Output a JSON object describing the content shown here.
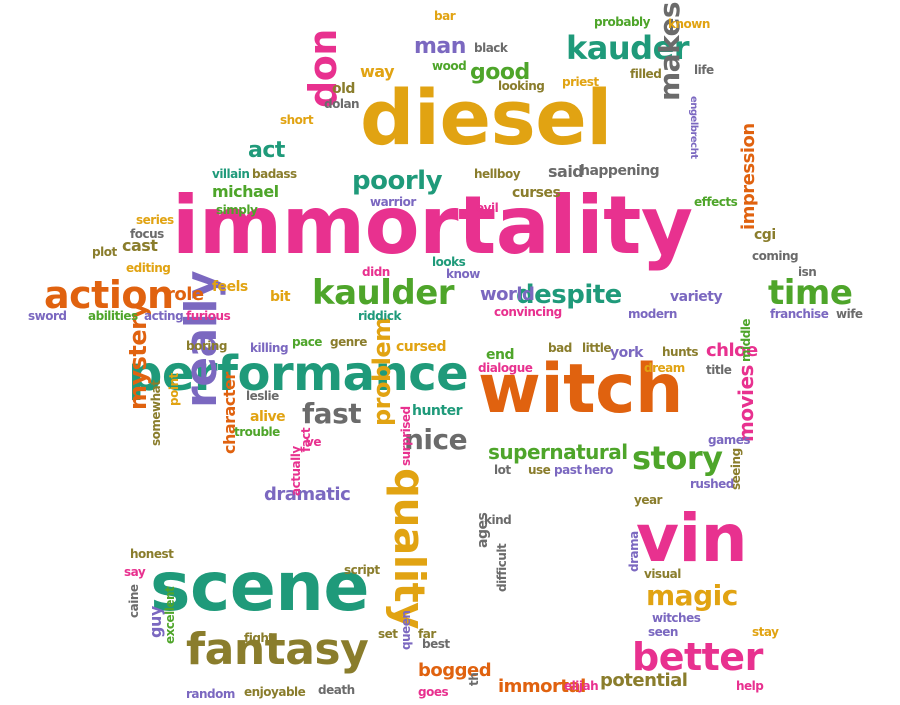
{
  "palette": {
    "pink": "#e8318f",
    "gold": "#e1a312",
    "teal": "#1f9a7a",
    "purple": "#7b68c0",
    "orange": "#e0620f",
    "olive": "#8a7d2c",
    "green": "#4ea52a",
    "gray": "#6b6b6b",
    "dark": "#555555"
  },
  "words": [
    {
      "text": "immortality",
      "color": "pink"
    },
    {
      "text": "diesel",
      "color": "gold"
    },
    {
      "text": "witch",
      "color": "orange"
    },
    {
      "text": "scene",
      "color": "teal"
    },
    {
      "text": "performance",
      "color": "teal"
    },
    {
      "text": "vin",
      "color": "pink"
    },
    {
      "text": "kaulder",
      "color": "green"
    },
    {
      "text": "kauder",
      "color": "teal"
    },
    {
      "text": "fantasy",
      "color": "olive"
    },
    {
      "text": "really",
      "color": "purple"
    },
    {
      "text": "quality",
      "color": "gold"
    },
    {
      "text": "don",
      "color": "pink"
    },
    {
      "text": "action",
      "color": "orange"
    },
    {
      "text": "time",
      "color": "green"
    },
    {
      "text": "better",
      "color": "pink"
    },
    {
      "text": "makes",
      "color": "gray"
    },
    {
      "text": "story",
      "color": "green"
    },
    {
      "text": "despite",
      "color": "teal"
    },
    {
      "text": "poorly",
      "color": "teal"
    },
    {
      "text": "magic",
      "color": "gold"
    },
    {
      "text": "nice",
      "color": "gray"
    },
    {
      "text": "problem",
      "color": "gold"
    },
    {
      "text": "mystery",
      "color": "orange"
    },
    {
      "text": "fast",
      "color": "gray"
    },
    {
      "text": "supernatural",
      "color": "green"
    },
    {
      "text": "good",
      "color": "green"
    },
    {
      "text": "man",
      "color": "purple"
    },
    {
      "text": "act",
      "color": "teal"
    },
    {
      "text": "movies",
      "color": "pink"
    },
    {
      "text": "dramatic",
      "color": "purple"
    },
    {
      "text": "immortal",
      "color": "orange"
    },
    {
      "text": "potential",
      "color": "olive"
    },
    {
      "text": "bogged",
      "color": "orange"
    },
    {
      "text": "impression",
      "color": "orange"
    },
    {
      "text": "chloe",
      "color": "pink"
    },
    {
      "text": "michael",
      "color": "green"
    },
    {
      "text": "world",
      "color": "purple"
    },
    {
      "text": "role",
      "color": "orange"
    },
    {
      "text": "cast",
      "color": "olive"
    },
    {
      "text": "way",
      "color": "gold"
    },
    {
      "text": "character",
      "color": "orange"
    },
    {
      "text": "guy",
      "color": "purple"
    },
    {
      "text": "hunter",
      "color": "teal"
    },
    {
      "text": "end",
      "color": "green"
    },
    {
      "text": "variety",
      "color": "purple"
    },
    {
      "text": "said",
      "color": "gray"
    },
    {
      "text": "york",
      "color": "purple"
    },
    {
      "text": "feels",
      "color": "gold"
    },
    {
      "text": "bit",
      "color": "gold"
    },
    {
      "text": "ages",
      "color": "gray"
    },
    {
      "text": "alive",
      "color": "gold"
    },
    {
      "text": "cursed",
      "color": "gold"
    },
    {
      "text": "curses",
      "color": "olive"
    },
    {
      "text": "happening",
      "color": "gray"
    },
    {
      "text": "old",
      "color": "olive"
    },
    {
      "text": "cgi",
      "color": "olive"
    },
    {
      "text": "excellent",
      "color": "green"
    },
    {
      "text": "drama",
      "color": "purple"
    },
    {
      "text": "enjoyable",
      "color": "olive"
    },
    {
      "text": "difficult",
      "color": "gray"
    },
    {
      "text": "bar",
      "color": "gold"
    },
    {
      "text": "probably",
      "color": "green"
    },
    {
      "text": "known",
      "color": "gold"
    },
    {
      "text": "black",
      "color": "gray"
    },
    {
      "text": "wood",
      "color": "green"
    },
    {
      "text": "priest",
      "color": "gold"
    },
    {
      "text": "filled",
      "color": "olive"
    },
    {
      "text": "life",
      "color": "gray"
    },
    {
      "text": "looking",
      "color": "olive"
    },
    {
      "text": "dolan",
      "color": "gray"
    },
    {
      "text": "short",
      "color": "gold"
    },
    {
      "text": "hellboy",
      "color": "olive"
    },
    {
      "text": "engelbrecht",
      "color": "purple"
    },
    {
      "text": "villain",
      "color": "teal"
    },
    {
      "text": "badass",
      "color": "olive"
    },
    {
      "text": "warrior",
      "color": "purple"
    },
    {
      "text": "effects",
      "color": "green"
    },
    {
      "text": "simply",
      "color": "green"
    },
    {
      "text": "evil",
      "color": "pink"
    },
    {
      "text": "series",
      "color": "gold"
    },
    {
      "text": "focus",
      "color": "gray"
    },
    {
      "text": "plot",
      "color": "olive"
    },
    {
      "text": "coming",
      "color": "gray"
    },
    {
      "text": "isn",
      "color": "gray"
    },
    {
      "text": "editing",
      "color": "gold"
    },
    {
      "text": "didn",
      "color": "pink"
    },
    {
      "text": "looks",
      "color": "teal"
    },
    {
      "text": "know",
      "color": "purple"
    },
    {
      "text": "sword",
      "color": "purple"
    },
    {
      "text": "abilities",
      "color": "green"
    },
    {
      "text": "acting",
      "color": "purple"
    },
    {
      "text": "furious",
      "color": "pink"
    },
    {
      "text": "riddick",
      "color": "teal"
    },
    {
      "text": "convincing",
      "color": "pink"
    },
    {
      "text": "modern",
      "color": "purple"
    },
    {
      "text": "franchise",
      "color": "purple"
    },
    {
      "text": "wife",
      "color": "gray"
    },
    {
      "text": "boring",
      "color": "olive"
    },
    {
      "text": "killing",
      "color": "purple"
    },
    {
      "text": "pace",
      "color": "green"
    },
    {
      "text": "genre",
      "color": "olive"
    },
    {
      "text": "bad",
      "color": "olive"
    },
    {
      "text": "little",
      "color": "olive"
    },
    {
      "text": "hunts",
      "color": "olive"
    },
    {
      "text": "dialogue",
      "color": "pink"
    },
    {
      "text": "dream",
      "color": "gold"
    },
    {
      "text": "title",
      "color": "gray"
    },
    {
      "text": "middle",
      "color": "green"
    },
    {
      "text": "leslie",
      "color": "gray"
    },
    {
      "text": "point",
      "color": "gold"
    },
    {
      "text": "trouble",
      "color": "green"
    },
    {
      "text": "ve",
      "color": "pink"
    },
    {
      "text": "games",
      "color": "purple"
    },
    {
      "text": "somewhat",
      "color": "olive"
    },
    {
      "text": "lot",
      "color": "gray"
    },
    {
      "text": "use",
      "color": "olive"
    },
    {
      "text": "past",
      "color": "purple"
    },
    {
      "text": "hero",
      "color": "purple"
    },
    {
      "text": "fact",
      "color": "pink"
    },
    {
      "text": "rushed",
      "color": "purple"
    },
    {
      "text": "year",
      "color": "olive"
    },
    {
      "text": "seeing",
      "color": "olive"
    },
    {
      "text": "surprised",
      "color": "pink"
    },
    {
      "text": "actually",
      "color": "pink"
    },
    {
      "text": "kind",
      "color": "gray"
    },
    {
      "text": "honest",
      "color": "olive"
    },
    {
      "text": "say",
      "color": "pink"
    },
    {
      "text": "script",
      "color": "olive"
    },
    {
      "text": "visual",
      "color": "olive"
    },
    {
      "text": "set",
      "color": "olive"
    },
    {
      "text": "far",
      "color": "olive"
    },
    {
      "text": "best",
      "color": "gray"
    },
    {
      "text": "witches",
      "color": "purple"
    },
    {
      "text": "seen",
      "color": "purple"
    },
    {
      "text": "stay",
      "color": "gold"
    },
    {
      "text": "caine",
      "color": "gray"
    },
    {
      "text": "fight",
      "color": "olive"
    },
    {
      "text": "queen",
      "color": "purple"
    },
    {
      "text": "random",
      "color": "purple"
    },
    {
      "text": "death",
      "color": "gray"
    },
    {
      "text": "goes",
      "color": "pink"
    },
    {
      "text": "th",
      "color": "gray"
    },
    {
      "text": "elijah",
      "color": "pink"
    },
    {
      "text": "help",
      "color": "pink"
    }
  ]
}
